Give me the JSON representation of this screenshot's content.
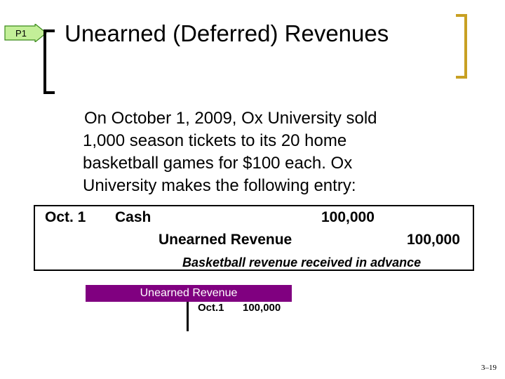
{
  "badge": {
    "label": "P1",
    "fill": "#c3ef98",
    "stroke": "#3a8a1a"
  },
  "title": "Unearned (Deferred) Revenues",
  "intro": [
    "On October 1, 2009, Ox University sold",
    "1,000 season tickets to its 20 home",
    "basketball games for $100 each. Ox",
    "University makes the following entry:"
  ],
  "journal": {
    "date": "Oct. 1",
    "debit_account": "Cash",
    "debit_amount": "100,000",
    "credit_account": "Unearned Revenue",
    "credit_amount": "100,000",
    "memo": "Basketball revenue received in advance"
  },
  "t_account": {
    "title": "Unearned Revenue",
    "header_color": "#800080",
    "entry_date": "Oct.1",
    "entry_amount": "100,000"
  },
  "page_number": "3–19"
}
